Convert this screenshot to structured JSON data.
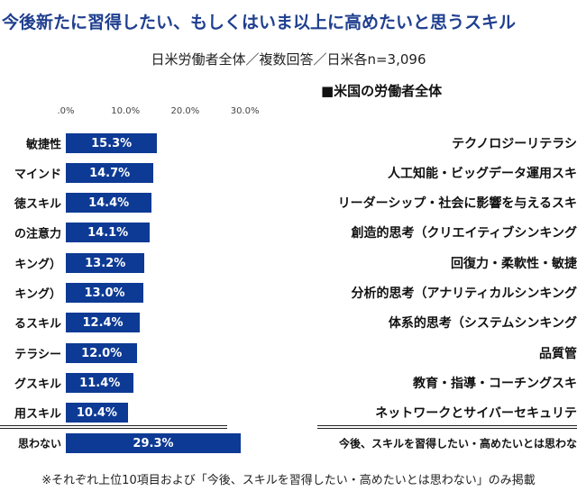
{
  "chart_data": {
    "type": "bar",
    "orientation": "horizontal",
    "title": "今後新たに習得したい、もしくはいま以上に高めたいと思うスキル",
    "subtitle": "日米労働者全体／複数回答／日米各n=3,096",
    "us_header": "■米国の労働者全体",
    "xlim": [
      0,
      30
    ],
    "ticks": [
      ".0%",
      "10.0%",
      "20.0%",
      "30.0%"
    ],
    "tick_values": [
      0,
      10,
      20,
      30
    ],
    "categories_left": [
      "敏捷性",
      "マインド",
      "徳スキル",
      "の注意力",
      "キング）",
      "キング）",
      "るスキル",
      "テラシー",
      "グスキル",
      "用スキル",
      "思わない"
    ],
    "values": [
      15.3,
      14.7,
      14.4,
      14.1,
      13.2,
      13.0,
      12.4,
      12.0,
      11.4,
      10.4,
      29.3
    ],
    "value_labels": [
      "15.3%",
      "14.7%",
      "14.4%",
      "14.1%",
      "13.2%",
      "13.0%",
      "12.4%",
      "12.0%",
      "11.4%",
      "10.4%",
      "29.3%"
    ],
    "categories_right": [
      "テクノロジーリテラシ",
      "人工知能・ビッグデータ運用スキ",
      "リーダーシップ・社会に影響を与えるスキ",
      "創造的思考（クリエイティブシンキング",
      "回復力・柔軟性・敏捷",
      "分析的思考（アナリティカルシンキング",
      "体系的思考（システムシンキング",
      "品質管",
      "教育・指導・コーチングスキ",
      "ネットワークとサイバーセキュリテ",
      "今後、スキルを習得したい・高めたいとは思わな"
    ],
    "note": "※それぞれ上位10項目および「今後、スキルを習得したい・高めたいとは思わない」のみ掲載",
    "bar_color": "#0d3a94"
  }
}
